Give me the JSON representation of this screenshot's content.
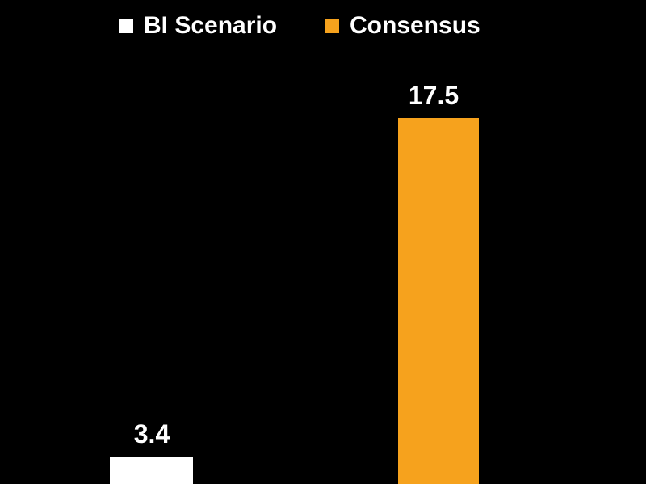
{
  "chart_data": {
    "type": "bar",
    "title": "",
    "categories": [
      "BI Scenario",
      "Consensus"
    ],
    "series": [
      {
        "name": "BI Scenario",
        "value": 3.4,
        "label": "3.4",
        "color": "#ffffff"
      },
      {
        "name": "Consensus",
        "value": 17.5,
        "label": "17.5",
        "color": "#f6a21d"
      }
    ],
    "legend_position": "top",
    "background": "#000000",
    "grid": false,
    "axes_visible": false
  }
}
